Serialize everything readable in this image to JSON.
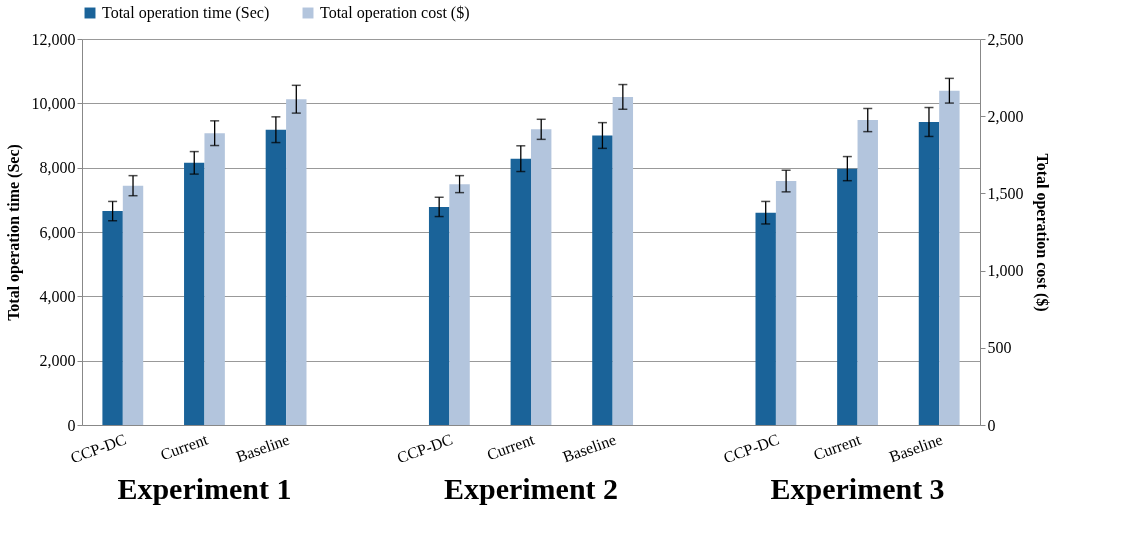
{
  "chart_data": {
    "type": "bar",
    "categories": [
      "CCP-DC",
      "Current",
      "Baseline",
      null,
      "CCP-DC",
      "Current",
      "Baseline",
      null,
      "CCP-DC",
      "Current",
      "Baseline"
    ],
    "series": [
      {
        "name": "Total operation time (Sec)",
        "color": "#1a6399",
        "values": [
          6650,
          8150,
          9180,
          null,
          6780,
          8280,
          9000,
          null,
          6600,
          7970,
          9420
        ],
        "errors": [
          300,
          350,
          400,
          null,
          300,
          400,
          400,
          null,
          350,
          375,
          450
        ]
      },
      {
        "name": "Total operation cost ($)",
        "color": "#b3c5dd",
        "axis": "y2",
        "values": [
          1550,
          1890,
          2110,
          null,
          1560,
          1915,
          2125,
          null,
          1580,
          1975,
          2165
        ],
        "errors": [
          65,
          80,
          90,
          null,
          55,
          65,
          80,
          null,
          70,
          75,
          80
        ]
      }
    ],
    "ylabel": "Total operation time (Sec)",
    "y2label": "Total operation cost ($)",
    "ylim": [
      0,
      12000
    ],
    "yticks": [
      0,
      {
        "value": 2000,
        "label": "2,000"
      },
      {
        "value": 4000,
        "label": "4,000"
      },
      {
        "value": 6000,
        "label": "6,000"
      },
      {
        "value": 8000,
        "label": "8,000"
      },
      {
        "value": 10000,
        "label": "10,000"
      },
      {
        "value": 12000,
        "label": "12,000"
      }
    ],
    "y2lim": [
      0,
      2500
    ],
    "y2ticks": [
      0,
      500,
      {
        "value": 1000,
        "label": "1,000"
      },
      {
        "value": 1500,
        "label": "1,500"
      },
      {
        "value": 2000,
        "label": "2,000"
      },
      {
        "value": 2500,
        "label": "2,500"
      }
    ],
    "annotations": [
      "Experiment 1",
      "Experiment 2",
      "Experiment 3"
    ],
    "grid": "y",
    "legend": "top"
  }
}
